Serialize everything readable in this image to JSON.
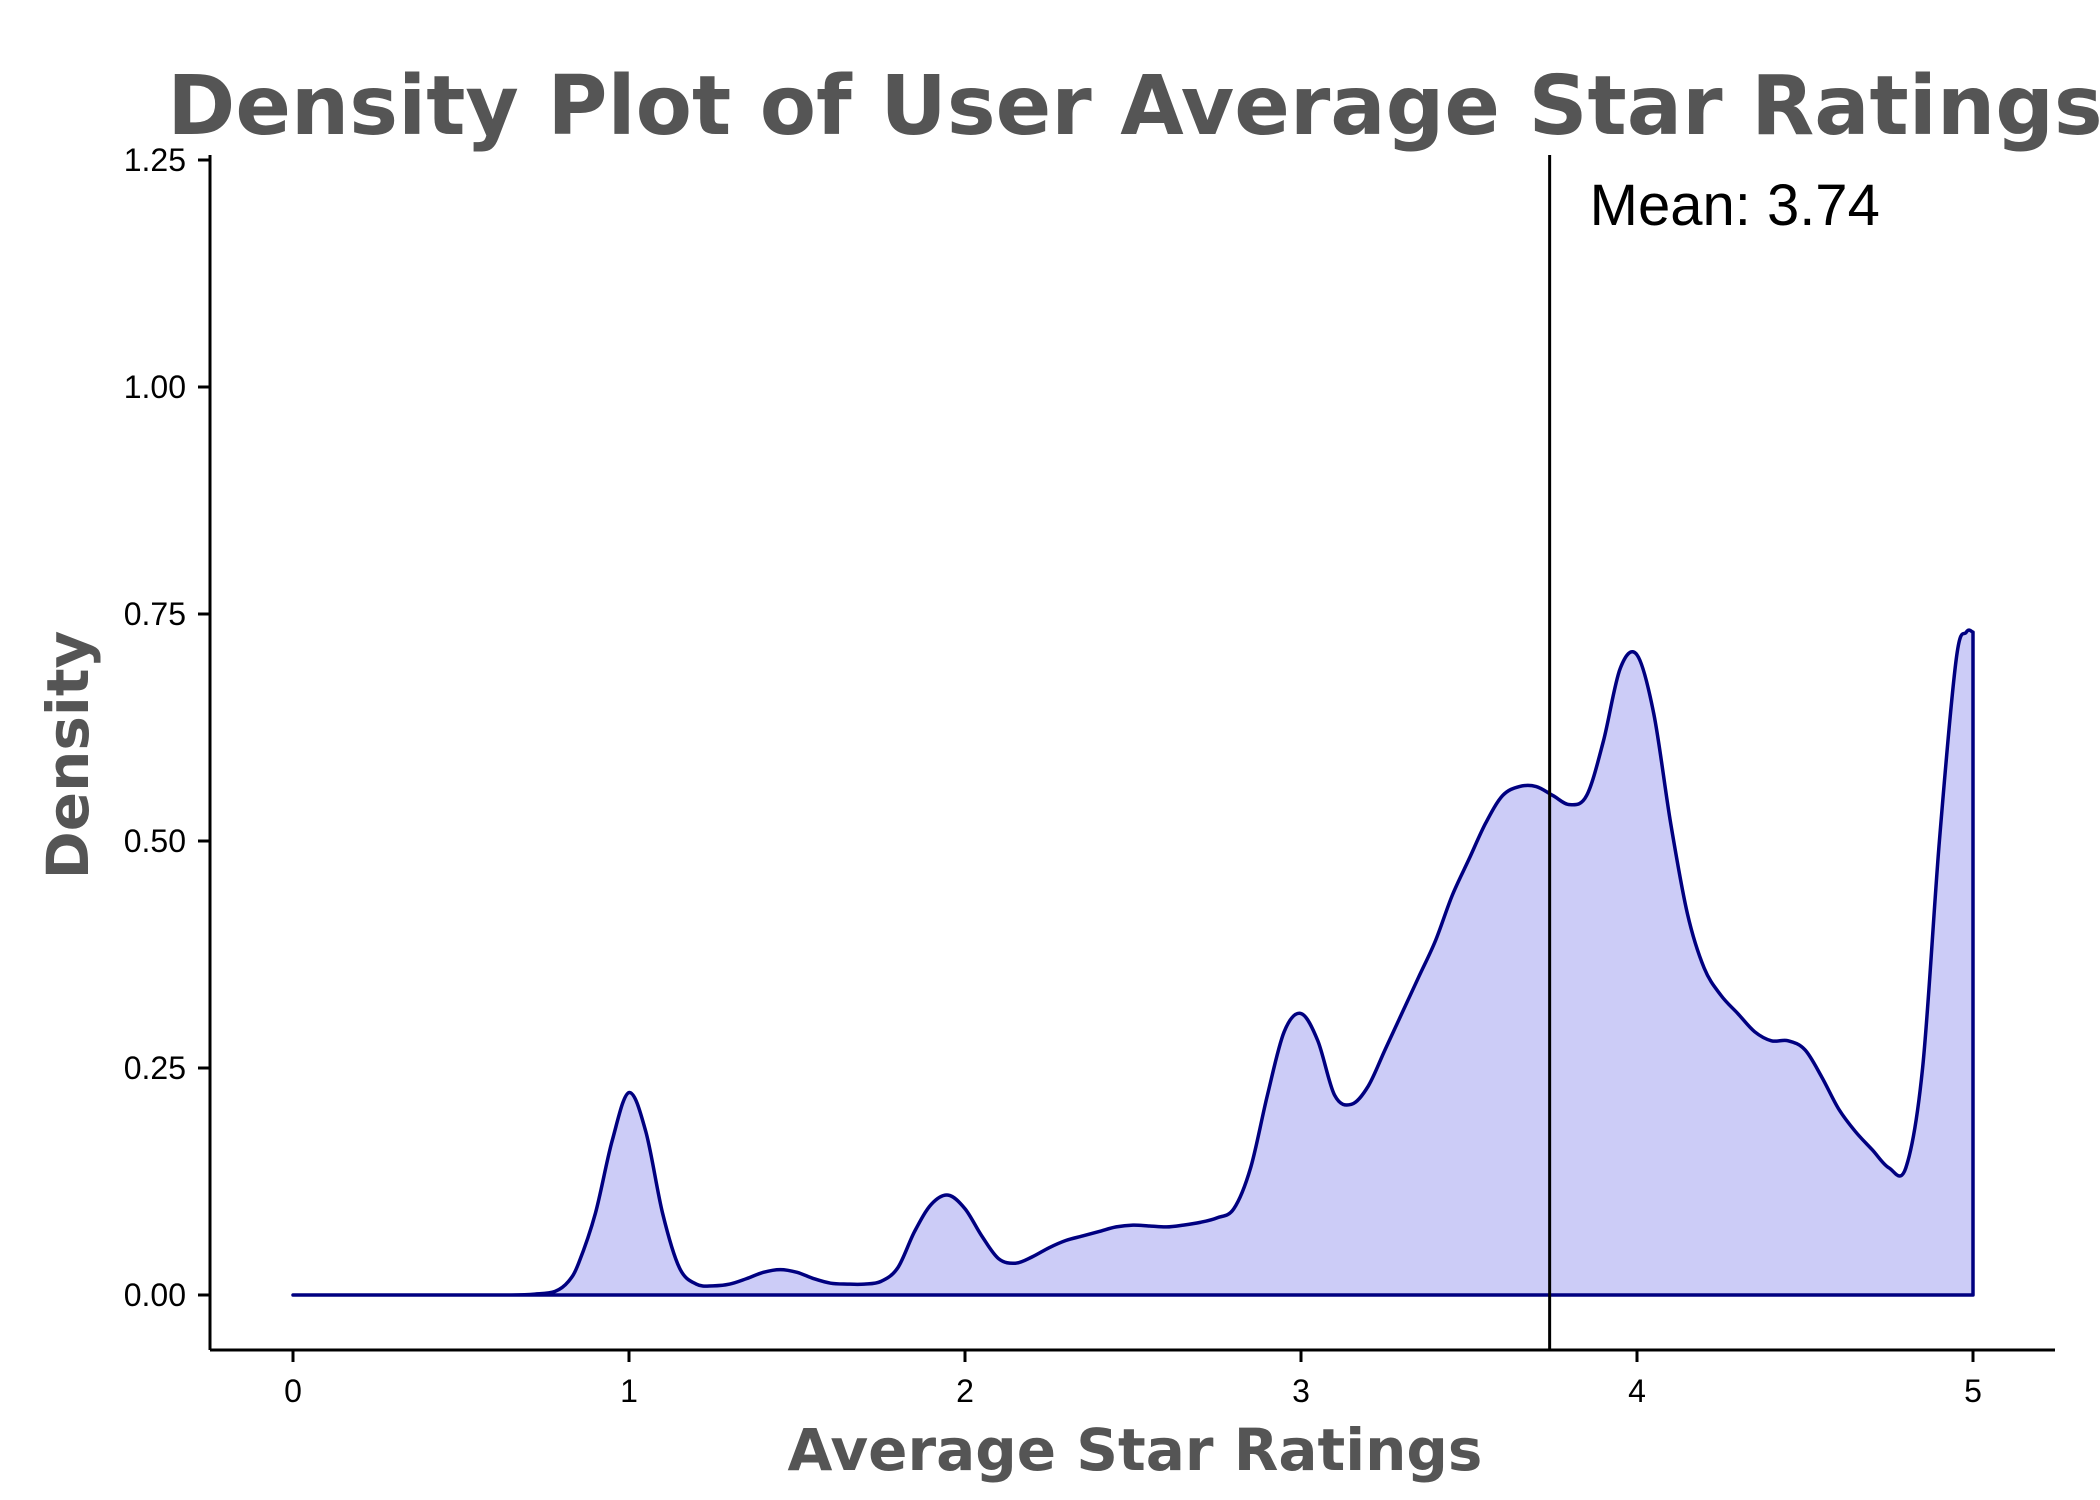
{
  "chart_data": {
    "type": "area",
    "title": "Density Plot of User Average Star Ratings",
    "xlabel": "Average Star Ratings",
    "ylabel": "Density",
    "xlim": [
      0,
      5
    ],
    "ylim": [
      0,
      1.25
    ],
    "xticks": [
      0,
      1,
      2,
      3,
      4,
      5
    ],
    "yticks": [
      0,
      0.25,
      0.5,
      0.75,
      1.0,
      1.25
    ],
    "xtick_labels": [
      "0",
      "1",
      "2",
      "3",
      "4",
      "5"
    ],
    "ytick_labels": [
      "0.00",
      "0.25",
      "0.50",
      "0.75",
      "1.00",
      "1.25"
    ],
    "grid": false,
    "legend": "none",
    "fill_color": "#ccccf7",
    "line_color": "#000080",
    "series": [
      {
        "x": [
          0,
          0.5,
          0.65,
          0.72,
          0.78,
          0.82,
          0.85,
          0.9,
          0.95,
          1.0,
          1.05,
          1.1,
          1.15,
          1.2,
          1.25,
          1.3,
          1.35,
          1.4,
          1.45,
          1.5,
          1.55,
          1.6,
          1.65,
          1.7,
          1.75,
          1.8,
          1.85,
          1.9,
          1.95,
          2.0,
          2.05,
          2.1,
          2.15,
          2.2,
          2.25,
          2.3,
          2.35,
          2.4,
          2.45,
          2.5,
          2.55,
          2.6,
          2.65,
          2.7,
          2.75,
          2.8,
          2.85,
          2.9,
          2.95,
          3.0,
          3.05,
          3.1,
          3.15,
          3.2,
          3.25,
          3.3,
          3.35,
          3.4,
          3.45,
          3.5,
          3.55,
          3.6,
          3.65,
          3.7,
          3.75,
          3.8,
          3.85,
          3.9,
          3.95,
          4.0,
          4.05,
          4.1,
          4.15,
          4.2,
          4.25,
          4.3,
          4.35,
          4.4,
          4.45,
          4.5,
          4.55,
          4.6,
          4.65,
          4.7,
          4.75,
          4.8,
          4.85,
          4.9,
          4.95,
          4.98,
          5.0
        ],
        "y": [
          0.0,
          0.0,
          0.0,
          0.001,
          0.004,
          0.015,
          0.035,
          0.09,
          0.17,
          0.223,
          0.18,
          0.09,
          0.03,
          0.012,
          0.01,
          0.012,
          0.018,
          0.025,
          0.028,
          0.025,
          0.018,
          0.013,
          0.012,
          0.012,
          0.015,
          0.03,
          0.07,
          0.1,
          0.11,
          0.095,
          0.065,
          0.04,
          0.035,
          0.042,
          0.052,
          0.06,
          0.065,
          0.07,
          0.075,
          0.077,
          0.076,
          0.075,
          0.077,
          0.08,
          0.085,
          0.095,
          0.14,
          0.22,
          0.29,
          0.31,
          0.28,
          0.22,
          0.21,
          0.23,
          0.27,
          0.31,
          0.35,
          0.39,
          0.44,
          0.48,
          0.52,
          0.55,
          0.56,
          0.56,
          0.55,
          0.54,
          0.55,
          0.61,
          0.69,
          0.705,
          0.64,
          0.52,
          0.42,
          0.36,
          0.33,
          0.31,
          0.29,
          0.28,
          0.28,
          0.27,
          0.24,
          0.205,
          0.18,
          0.16,
          0.14,
          0.14,
          0.25,
          0.5,
          0.7,
          0.73,
          0.73
        ]
      }
    ],
    "annotations": [
      {
        "type": "vline",
        "x": 3.74,
        "label": "Mean: 3.74"
      }
    ]
  }
}
